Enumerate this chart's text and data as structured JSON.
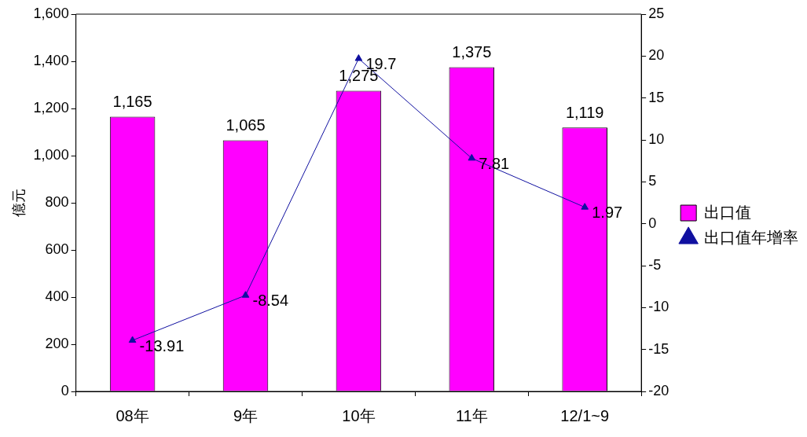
{
  "chart_data": {
    "type": "bar",
    "categories": [
      "08年",
      "9年",
      "10年",
      "11年",
      "12/1~9"
    ],
    "ylabel": "億元",
    "series": [
      {
        "name": "出口值",
        "color": "#ff00ff",
        "values": [
          1165,
          1065,
          1275,
          1375,
          1119
        ],
        "value_labels": [
          "1,165",
          "1,065",
          "1,275",
          "1,375",
          "1,119"
        ]
      },
      {
        "name": "出口值年增率",
        "type": "line",
        "axis": "y2",
        "color": "#1010a0",
        "values": [
          -13.91,
          -8.54,
          19.7,
          7.81,
          1.97
        ],
        "value_labels": [
          "-13.91",
          "-8.54",
          "19.7",
          "7.81",
          "1.97"
        ],
        "marker": "triangle"
      }
    ],
    "ylim": [
      0,
      1600
    ],
    "yticks": [
      0,
      200,
      400,
      600,
      800,
      {
        "value": 1000,
        "label": "1,000"
      },
      {
        "value": 1200,
        "label": "1,200"
      },
      {
        "value": 1400,
        "label": "1,400"
      },
      {
        "value": 1600,
        "label": "1,600"
      }
    ],
    "y2lim": [
      -20,
      25
    ],
    "y2ticks": [
      -20,
      -15,
      -10,
      -5,
      0,
      5,
      10,
      15,
      20,
      25
    ],
    "grid": false,
    "legend": "right"
  }
}
